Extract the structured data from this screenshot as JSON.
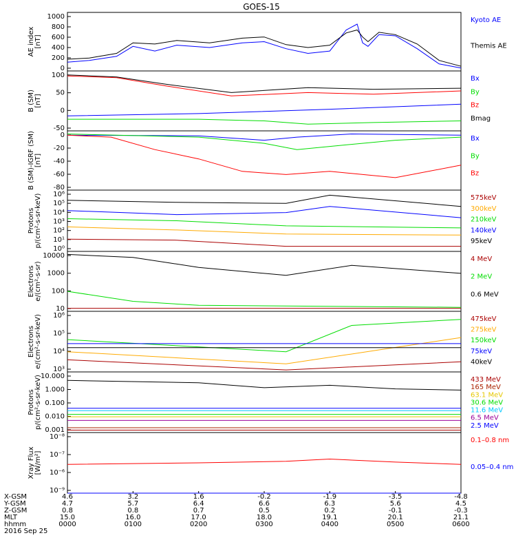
{
  "title": "GOES-15",
  "colors": {
    "black": "#000000",
    "blue": "#0000ff",
    "red": "#ff0000",
    "green": "#00dd00",
    "orange": "#ffaa00",
    "darkred": "#aa0000",
    "gold": "#e6c800",
    "cyan": "#00c8ff",
    "purple": "#990099",
    "brown": "#aa2200"
  },
  "chart_data": [
    {
      "type": "line",
      "ylabel": [
        "AE index",
        "[nT]"
      ],
      "yticks": [
        "1000",
        "800",
        "600",
        "400",
        "200",
        "0"
      ],
      "ylim": [
        0,
        1000
      ],
      "series": [
        {
          "name": "Kyoto AE",
          "color": "#0000ff",
          "x": [
            0,
            20,
            45,
            60,
            80,
            100,
            130,
            160,
            180,
            200,
            220,
            240,
            255,
            265,
            270,
            275,
            285,
            300,
            320,
            340,
            360
          ],
          "y": [
            150,
            180,
            250,
            420,
            340,
            440,
            400,
            480,
            500,
            380,
            300,
            340,
            700,
            800,
            480,
            420,
            620,
            600,
            380,
            120,
            50
          ]
        },
        {
          "name": "Themis AE",
          "color": "#000000",
          "x": [
            0,
            20,
            45,
            60,
            80,
            100,
            130,
            160,
            180,
            200,
            220,
            240,
            255,
            265,
            270,
            275,
            285,
            300,
            320,
            340,
            360
          ],
          "y": [
            200,
            220,
            300,
            480,
            460,
            520,
            480,
            560,
            580,
            450,
            400,
            440,
            650,
            700,
            580,
            500,
            660,
            620,
            460,
            180,
            80
          ]
        }
      ]
    },
    {
      "type": "line",
      "ylabel": [
        "B (SM)",
        "[nT]"
      ],
      "yticks": [
        "100",
        "50",
        "0",
        "-50"
      ],
      "ylim": [
        -60,
        120
      ],
      "series": [
        {
          "name": "Bx",
          "color": "#0000ff",
          "x": [
            0,
            120,
            240,
            360
          ],
          "y": [
            -15,
            -8,
            5,
            20
          ]
        },
        {
          "name": "By",
          "color": "#00dd00",
          "x": [
            0,
            120,
            180,
            220,
            280,
            360
          ],
          "y": [
            -25,
            -25,
            -30,
            -40,
            -35,
            -30
          ]
        },
        {
          "name": "Bz",
          "color": "#ff0000",
          "x": [
            0,
            45,
            90,
            150,
            220,
            280,
            360
          ],
          "y": [
            105,
            100,
            75,
            45,
            55,
            50,
            60
          ]
        },
        {
          "name": "Bmag",
          "color": "#000000",
          "x": [
            0,
            45,
            90,
            150,
            220,
            280,
            360
          ],
          "y": [
            108,
            102,
            80,
            55,
            70,
            65,
            68
          ]
        }
      ]
    },
    {
      "type": "line",
      "ylabel": [
        "B (SM)-IGRF (SM)",
        "[nT]"
      ],
      "yticks": [
        "0",
        "-20",
        "-40",
        "-60",
        "-80"
      ],
      "ylim": [
        -85,
        10
      ],
      "series": [
        {
          "name": "Bx",
          "color": "#0000ff",
          "x": [
            0,
            120,
            180,
            210,
            260,
            360
          ],
          "y": [
            3,
            2,
            -5,
            0,
            5,
            3
          ]
        },
        {
          "name": "By",
          "color": "#00dd00",
          "x": [
            0,
            120,
            180,
            210,
            240,
            300,
            360
          ],
          "y": [
            5,
            0,
            -10,
            -20,
            -15,
            -5,
            0
          ]
        },
        {
          "name": "Bz",
          "color": "#ff0000",
          "x": [
            0,
            40,
            80,
            120,
            160,
            200,
            240,
            300,
            360
          ],
          "y": [
            3,
            0,
            -20,
            -35,
            -55,
            -60,
            -55,
            -65,
            -45
          ]
        }
      ]
    },
    {
      "type": "line",
      "log": true,
      "ylabel": [
        "Protons",
        "p/(cm²-s-sr-keV)"
      ],
      "yticks": [
        "10⁶",
        "10⁵",
        "10⁴",
        "10³",
        "10²",
        "10¹",
        "10⁰"
      ],
      "ylim": [
        0,
        6
      ],
      "series": [
        {
          "name": "575keV",
          "color": "#aa0000",
          "x": [
            0,
            100,
            200,
            360
          ],
          "y": [
            1.2,
            1.1,
            0.5,
            0.5
          ]
        },
        {
          "name": "300keV",
          "color": "#ffaa00",
          "x": [
            0,
            100,
            200,
            360
          ],
          "y": [
            2.4,
            2.1,
            1.7,
            1.6
          ]
        },
        {
          "name": "210keV",
          "color": "#00dd00",
          "x": [
            0,
            100,
            200,
            360
          ],
          "y": [
            3.2,
            3.0,
            2.5,
            2.3
          ]
        },
        {
          "name": "140keV",
          "color": "#0000ff",
          "x": [
            0,
            100,
            200,
            240,
            360
          ],
          "y": [
            4.0,
            3.6,
            3.8,
            4.4,
            3.3
          ]
        },
        {
          "name": "95keV",
          "color": "#000000",
          "x": [
            0,
            100,
            200,
            240,
            360
          ],
          "y": [
            5.0,
            4.8,
            4.7,
            5.5,
            4.4
          ]
        }
      ]
    },
    {
      "type": "line",
      "log": true,
      "ylabel": [
        "Electrons",
        "e/(cm²-s-sr)"
      ],
      "yticks": [
        "10000",
        "1000",
        "100",
        "10"
      ],
      "ylim": [
        1,
        4
      ],
      "series": [
        {
          "name": "4 MeV",
          "color": "#aa0000",
          "x": [
            0,
            360
          ],
          "y": [
            1.15,
            1.15
          ]
        },
        {
          "name": "2 MeV",
          "color": "#00dd00",
          "x": [
            0,
            60,
            120,
            360
          ],
          "y": [
            2.0,
            1.5,
            1.3,
            1.2
          ]
        },
        {
          "name": "0.6 MeV",
          "color": "#000000",
          "x": [
            0,
            60,
            120,
            200,
            260,
            360
          ],
          "y": [
            3.85,
            3.7,
            3.2,
            2.8,
            3.3,
            2.9
          ]
        }
      ]
    },
    {
      "type": "line",
      "log": true,
      "ylabel": [
        "Electrons",
        "e/(cm²-s-sr-keV)"
      ],
      "yticks": [
        "10⁶",
        "10⁵",
        "10⁴",
        "10³"
      ],
      "ylim": [
        3,
        6
      ],
      "series": [
        {
          "name": "475keV",
          "color": "#aa0000",
          "x": [
            0,
            200,
            360
          ],
          "y": [
            3.6,
            3.1,
            3.5
          ]
        },
        {
          "name": "275keV",
          "color": "#ffaa00",
          "x": [
            0,
            200,
            360
          ],
          "y": [
            4.0,
            3.4,
            4.7
          ]
        },
        {
          "name": "150keV",
          "color": "#00dd00",
          "x": [
            0,
            200,
            260,
            360
          ],
          "y": [
            4.6,
            4.0,
            5.3,
            5.6
          ]
        },
        {
          "name": "75keV",
          "color": "#0000ff",
          "x": [
            0,
            360
          ],
          "y": [
            4.4,
            4.4
          ]
        },
        {
          "name": "40keV",
          "color": "#000000",
          "x": [
            0,
            360
          ],
          "y": [
            4.2,
            4.2
          ]
        }
      ]
    },
    {
      "type": "line",
      "log": true,
      "ylabel": [
        "Protons",
        "p/(cm²-s-sr-keV)"
      ],
      "yticks": [
        "10.000",
        "1.000",
        "0.100",
        "0.010",
        "0.001"
      ],
      "ylim": [
        -3,
        2
      ],
      "series": [
        {
          "name": "433 MeV",
          "color": "#aa0000",
          "x": [
            0,
            360
          ],
          "y": [
            -2.8,
            -2.8
          ]
        },
        {
          "name": "165 MeV",
          "color": "#aa2200",
          "x": [
            0,
            360
          ],
          "y": [
            -2.6,
            -2.6
          ]
        },
        {
          "name": "63.1 MeV",
          "color": "#e6c800",
          "x": [
            0,
            360
          ],
          "y": [
            -1.7,
            -1.7
          ]
        },
        {
          "name": "30.6 MeV",
          "color": "#00dd00",
          "x": [
            0,
            360
          ],
          "y": [
            -1.5,
            -1.5
          ]
        },
        {
          "name": "11.6 MeV",
          "color": "#00c8ff",
          "x": [
            0,
            360
          ],
          "y": [
            -1.2,
            -1.2
          ]
        },
        {
          "name": "6.5 MeV",
          "color": "#990099",
          "x": [
            0,
            360
          ],
          "y": [
            -2.0,
            -2.0
          ]
        },
        {
          "name": "2.5 MeV",
          "color": "#0000ff",
          "x": [
            0,
            360
          ],
          "y": [
            -1.0,
            -1.0
          ]
        },
        {
          "name": "",
          "color": "#000000",
          "x": [
            0,
            120,
            180,
            240,
            300,
            360
          ],
          "y": [
            1.3,
            1.1,
            0.7,
            0.9,
            0.6,
            0.5
          ]
        }
      ]
    },
    {
      "type": "line",
      "log": true,
      "ylabel": [
        "Xray Flux",
        "[W/m²]"
      ],
      "yticks": [
        "10⁻⁸",
        "10⁻⁷",
        "10⁻⁶",
        "10⁻⁹"
      ],
      "ylim": [
        -9,
        -5
      ],
      "series": [
        {
          "name": "0.1–0.8 nm",
          "color": "#ff0000",
          "x": [
            0,
            120,
            200,
            240,
            300,
            360
          ],
          "y": [
            -7.1,
            -7.0,
            -6.9,
            -6.75,
            -6.95,
            -7.1
          ]
        },
        {
          "name": "0.05–0.4 nm",
          "color": "#0000ff",
          "x": [
            0,
            360
          ],
          "y": [
            -9.0,
            -9.0
          ]
        }
      ]
    }
  ],
  "footer": {
    "row_labels": [
      "X-GSM",
      "Y-GSM",
      "Z-GSM",
      "MLT",
      "hhmm",
      "2016 Sep 25"
    ],
    "columns": [
      [
        "4.6",
        "4.7",
        "0.8",
        "15.0",
        "0000"
      ],
      [
        "3.2",
        "5.7",
        "0.8",
        "16.0",
        "0100"
      ],
      [
        "1.6",
        "6.4",
        "0.7",
        "17.0",
        "0200"
      ],
      [
        "-0.2",
        "6.6",
        "0.5",
        "18.0",
        "0300"
      ],
      [
        "-1.9",
        "6.3",
        "0.2",
        "19.1",
        "0400"
      ],
      [
        "-3.5",
        "5.6",
        "-0.1",
        "20.1",
        "0500"
      ],
      [
        "-4.8",
        "4.5",
        "-0.3",
        "21.1",
        "0600"
      ]
    ]
  }
}
